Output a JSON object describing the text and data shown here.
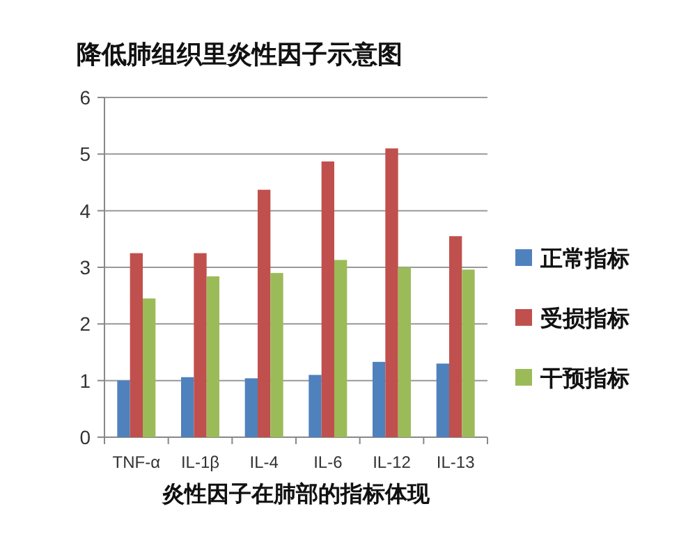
{
  "chart_data": {
    "type": "bar",
    "title": "降低肺组织里炎性因子示意图",
    "xlabel": "炎性因子在肺部的指标体现",
    "categories": [
      "TNF-α",
      "IL-1β",
      "IL-4",
      "IL-6",
      "IL-12",
      "IL-13"
    ],
    "series": [
      {
        "name": "正常指标",
        "color": "#4f81bd",
        "values": [
          1.0,
          1.06,
          1.04,
          1.1,
          1.33,
          1.3
        ]
      },
      {
        "name": "受损指标",
        "color": "#c0504d",
        "values": [
          3.25,
          3.25,
          4.37,
          4.87,
          5.1,
          3.55
        ]
      },
      {
        "name": "干预指标",
        "color": "#9bbb59",
        "values": [
          2.45,
          2.84,
          2.9,
          3.13,
          3.0,
          2.96
        ]
      }
    ],
    "ylim": [
      0,
      6
    ],
    "yticks": [
      0,
      1,
      2,
      3,
      4,
      5,
      6
    ],
    "grid": "y",
    "legend": "right"
  }
}
